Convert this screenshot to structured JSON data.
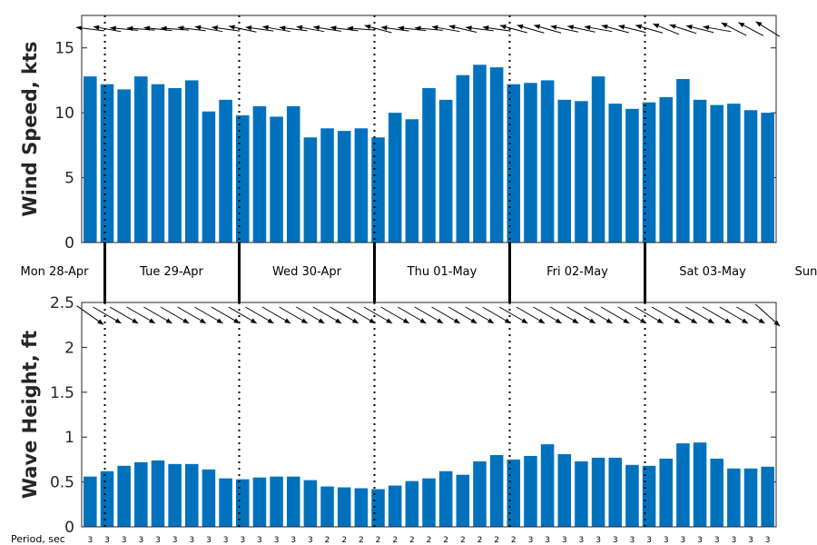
{
  "chart_data": [
    {
      "type": "bar",
      "ylabel": "Wind Speed, kts",
      "ylim": [
        0,
        17.5
      ],
      "yticks": [
        "0",
        "5",
        "10",
        "15"
      ],
      "values": [
        12.8,
        12.2,
        11.8,
        12.8,
        12.2,
        11.9,
        12.5,
        10.1,
        11.0,
        9.8,
        10.5,
        9.7,
        10.5,
        8.1,
        8.8,
        8.6,
        8.8,
        8.1,
        10.0,
        9.5,
        11.9,
        11.0,
        12.9,
        13.7,
        13.5,
        12.2,
        12.3,
        12.5,
        11.0,
        10.9,
        12.8,
        10.7,
        10.3,
        10.8,
        11.2,
        12.6,
        11.0,
        10.6,
        10.7,
        10.2,
        10.0
      ],
      "direction_deg": [
        173,
        170,
        175,
        176,
        174,
        176,
        173,
        170,
        172,
        168,
        172,
        170,
        173,
        170,
        171,
        173,
        176,
        165,
        172,
        174,
        175,
        170,
        167,
        173,
        172,
        165,
        164,
        164,
        168,
        168,
        170,
        165,
        166,
        164,
        158,
        162,
        166,
        170,
        153,
        152,
        148
      ],
      "bar_color": "#0072BD"
    },
    {
      "type": "bar",
      "ylabel": "Wave Height, ft",
      "ylim": [
        0,
        2.5
      ],
      "yticks": [
        "0",
        "0.5",
        "1",
        "1.5",
        "2",
        "2.5"
      ],
      "values": [
        0.56,
        0.62,
        0.68,
        0.72,
        0.74,
        0.7,
        0.7,
        0.64,
        0.54,
        0.53,
        0.55,
        0.56,
        0.56,
        0.52,
        0.45,
        0.44,
        0.43,
        0.42,
        0.46,
        0.51,
        0.54,
        0.62,
        0.58,
        0.73,
        0.8,
        0.75,
        0.79,
        0.92,
        0.81,
        0.73,
        0.77,
        0.77,
        0.69,
        0.68,
        0.76,
        0.93,
        0.94,
        0.76,
        0.65,
        0.65,
        0.67
      ],
      "direction_deg": [
        -35,
        -30,
        -30,
        -30,
        -30,
        -30,
        -30,
        -30,
        -30,
        -30,
        -30,
        -30,
        -30,
        -30,
        -30,
        -30,
        -30,
        -30,
        -30,
        -30,
        -30,
        -30,
        -30,
        -30,
        -30,
        -30,
        -30,
        -30,
        -30,
        -30,
        -30,
        -30,
        -30,
        -30,
        -30,
        -30,
        -30,
        -30,
        -30,
        -30,
        -42
      ],
      "bar_color": "#0072BD"
    }
  ],
  "days": [
    "Mon 28-Apr",
    "Tue 29-Apr",
    "Wed 30-Apr",
    "Thu 01-May",
    "Fri 02-May",
    "Sat 03-May",
    "Sun"
  ],
  "period_label": "Period, sec",
  "periods": [
    "3",
    "3",
    "3",
    "3",
    "3",
    "3",
    "3",
    "3",
    "3",
    "3",
    "3",
    "3",
    "3",
    "3",
    "2",
    "2",
    "2",
    "2",
    "2",
    "2",
    "2",
    "2",
    "2",
    "2",
    "2",
    "2",
    "3",
    "3",
    "3",
    "3",
    "3",
    "3",
    "3",
    "3",
    "3",
    "3",
    "3",
    "3",
    "3",
    "3",
    "3"
  ]
}
